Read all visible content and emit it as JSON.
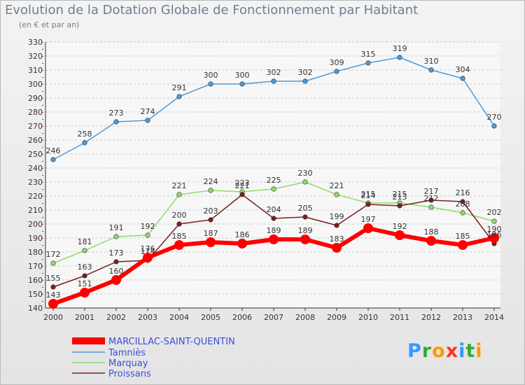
{
  "header": {
    "title": "Evolution de la Dotation Globale de Fonctionnement par Habitant",
    "subtitle": "(en € et par an)"
  },
  "logo": {
    "text": "Proxiti",
    "letter_colors": [
      "#3399ff",
      "#33aa33",
      "#ff9900",
      "#ff3333",
      "#3399ff",
      "#33aa33",
      "#ff9900"
    ]
  },
  "chart_data": {
    "type": "line",
    "title": "Evolution de la Dotation Globale de Fonctionnement par Habitant",
    "subtitle": "(en € et par an)",
    "x": [
      "2000",
      "2001",
      "2002",
      "2003",
      "2004",
      "2005",
      "2006",
      "2007",
      "2008",
      "2009",
      "2010",
      "2011",
      "2012",
      "2013",
      "2014"
    ],
    "ylim": [
      140,
      330
    ],
    "yticks": [
      140,
      150,
      160,
      170,
      180,
      190,
      200,
      210,
      220,
      230,
      240,
      250,
      260,
      270,
      280,
      290,
      300,
      310,
      320,
      330
    ],
    "grid": "horizontal dashed",
    "legend_position": "bottom-left",
    "series": [
      {
        "name": "MARCILLAC-SAINT-QUENTIN",
        "color": "#ff0000",
        "values": [
          143,
          151,
          160,
          176,
          185,
          187,
          186,
          189,
          189,
          183,
          197,
          192,
          188,
          185,
          190
        ]
      },
      {
        "name": "Tamniès",
        "color": "#4f9ad6",
        "values": [
          246,
          258,
          273,
          274,
          291,
          300,
          300,
          302,
          302,
          309,
          315,
          319,
          310,
          304,
          270
        ]
      },
      {
        "name": "Marquay",
        "color": "#8fdc6a",
        "values": [
          172,
          181,
          191,
          192,
          221,
          224,
          223,
          225,
          230,
          221,
          215,
          215,
          212,
          208,
          202
        ]
      },
      {
        "name": "Proissans",
        "color": "#7a1f1f",
        "values": [
          155,
          163,
          173,
          174,
          200,
          203,
          221,
          204,
          205,
          199,
          214,
          213,
          217,
          216,
          186
        ]
      }
    ]
  }
}
